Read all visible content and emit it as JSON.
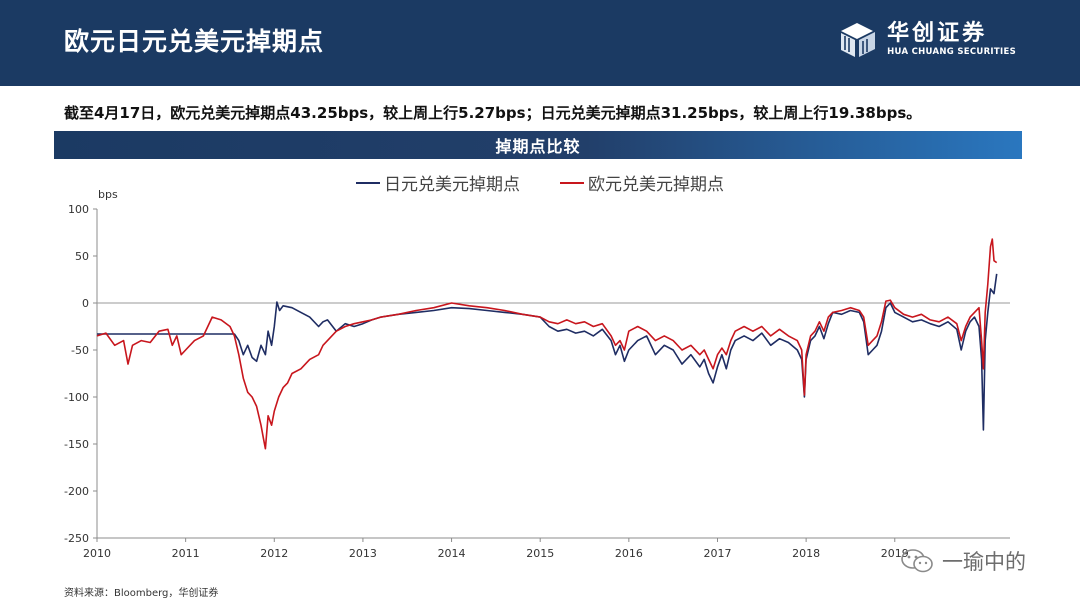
{
  "header": {
    "title": "欧元日元兑美元掉期点",
    "brand_cn": "华创证券",
    "brand_en": "HUA CHUANG SECURITIES"
  },
  "summary": "截至4月17日，欧元兑美元掉期点43.25bps，较上周上行5.27bps；日元兑美元掉期点31.25bps，较上周上行19.38bps。",
  "chart_title": "掉期点比较",
  "source": "资料来源：Bloomberg，华创证券",
  "watermark": "一瑜中的",
  "colors": {
    "header_bg": "#1b3a63",
    "jpy_series": "#1f2d63",
    "eur_series": "#c8161d"
  },
  "chart_data": {
    "type": "line",
    "title": "掉期点比较",
    "unit_label": "bps",
    "xlim": [
      2010,
      2020.3
    ],
    "ylim": [
      -250,
      100
    ],
    "yticks": [
      100,
      50,
      0,
      -50,
      -100,
      -150,
      -200,
      -250
    ],
    "xticks": [
      2010,
      2011,
      2012,
      2013,
      2014,
      2015,
      2016,
      2017,
      2018,
      2019
    ],
    "grid": false,
    "legend_position": "top-center",
    "series": [
      {
        "name": "日元兑美元掉期点",
        "color": "#1f2d63",
        "points": [
          [
            2010.0,
            -33
          ],
          [
            2010.5,
            -33
          ],
          [
            2011.0,
            -33
          ],
          [
            2011.3,
            -33
          ],
          [
            2011.55,
            -33
          ],
          [
            2011.6,
            -40
          ],
          [
            2011.65,
            -55
          ],
          [
            2011.7,
            -45
          ],
          [
            2011.75,
            -58
          ],
          [
            2011.8,
            -62
          ],
          [
            2011.85,
            -45
          ],
          [
            2011.9,
            -55
          ],
          [
            2011.93,
            -30
          ],
          [
            2011.97,
            -45
          ],
          [
            2012.0,
            -25
          ],
          [
            2012.03,
            1
          ],
          [
            2012.06,
            -8
          ],
          [
            2012.1,
            -3
          ],
          [
            2012.2,
            -5
          ],
          [
            2012.3,
            -10
          ],
          [
            2012.4,
            -15
          ],
          [
            2012.5,
            -25
          ],
          [
            2012.55,
            -20
          ],
          [
            2012.6,
            -18
          ],
          [
            2012.7,
            -30
          ],
          [
            2012.8,
            -22
          ],
          [
            2012.9,
            -25
          ],
          [
            2013.0,
            -22
          ],
          [
            2013.1,
            -18
          ],
          [
            2013.2,
            -15
          ],
          [
            2013.4,
            -12
          ],
          [
            2013.6,
            -10
          ],
          [
            2013.8,
            -8
          ],
          [
            2014.0,
            -5
          ],
          [
            2014.2,
            -6
          ],
          [
            2014.4,
            -8
          ],
          [
            2014.6,
            -10
          ],
          [
            2014.8,
            -12
          ],
          [
            2015.0,
            -15
          ],
          [
            2015.1,
            -25
          ],
          [
            2015.2,
            -30
          ],
          [
            2015.3,
            -28
          ],
          [
            2015.4,
            -32
          ],
          [
            2015.5,
            -30
          ],
          [
            2015.6,
            -35
          ],
          [
            2015.7,
            -28
          ],
          [
            2015.8,
            -40
          ],
          [
            2015.85,
            -55
          ],
          [
            2015.9,
            -45
          ],
          [
            2015.95,
            -62
          ],
          [
            2016.0,
            -50
          ],
          [
            2016.1,
            -40
          ],
          [
            2016.2,
            -35
          ],
          [
            2016.3,
            -55
          ],
          [
            2016.4,
            -45
          ],
          [
            2016.5,
            -50
          ],
          [
            2016.6,
            -65
          ],
          [
            2016.7,
            -55
          ],
          [
            2016.8,
            -68
          ],
          [
            2016.85,
            -60
          ],
          [
            2016.9,
            -75
          ],
          [
            2016.95,
            -85
          ],
          [
            2017.0,
            -68
          ],
          [
            2017.05,
            -55
          ],
          [
            2017.1,
            -70
          ],
          [
            2017.15,
            -50
          ],
          [
            2017.2,
            -40
          ],
          [
            2017.3,
            -35
          ],
          [
            2017.4,
            -40
          ],
          [
            2017.5,
            -32
          ],
          [
            2017.6,
            -45
          ],
          [
            2017.7,
            -38
          ],
          [
            2017.8,
            -42
          ],
          [
            2017.9,
            -50
          ],
          [
            2017.95,
            -60
          ],
          [
            2017.98,
            -100
          ],
          [
            2018.0,
            -60
          ],
          [
            2018.05,
            -40
          ],
          [
            2018.1,
            -35
          ],
          [
            2018.15,
            -25
          ],
          [
            2018.2,
            -38
          ],
          [
            2018.25,
            -22
          ],
          [
            2018.3,
            -10
          ],
          [
            2018.4,
            -12
          ],
          [
            2018.5,
            -8
          ],
          [
            2018.6,
            -10
          ],
          [
            2018.65,
            -20
          ],
          [
            2018.7,
            -55
          ],
          [
            2018.75,
            -50
          ],
          [
            2018.8,
            -45
          ],
          [
            2018.85,
            -30
          ],
          [
            2018.9,
            -5
          ],
          [
            2018.95,
            0
          ],
          [
            2019.0,
            -10
          ],
          [
            2019.1,
            -15
          ],
          [
            2019.2,
            -20
          ],
          [
            2019.3,
            -18
          ],
          [
            2019.4,
            -22
          ],
          [
            2019.5,
            -25
          ],
          [
            2019.6,
            -20
          ],
          [
            2019.7,
            -28
          ],
          [
            2019.75,
            -50
          ],
          [
            2019.8,
            -30
          ],
          [
            2019.85,
            -20
          ],
          [
            2019.9,
            -15
          ],
          [
            2019.95,
            -25
          ],
          [
            2019.98,
            -60
          ],
          [
            2020.0,
            -135
          ],
          [
            2020.02,
            -40
          ],
          [
            2020.05,
            -10
          ],
          [
            2020.08,
            15
          ],
          [
            2020.12,
            10
          ],
          [
            2020.15,
            31
          ]
        ]
      },
      {
        "name": "欧元兑美元掉期点",
        "color": "#c8161d",
        "points": [
          [
            2010.0,
            -35
          ],
          [
            2010.1,
            -32
          ],
          [
            2010.2,
            -45
          ],
          [
            2010.3,
            -40
          ],
          [
            2010.35,
            -65
          ],
          [
            2010.4,
            -45
          ],
          [
            2010.5,
            -40
          ],
          [
            2010.6,
            -42
          ],
          [
            2010.7,
            -30
          ],
          [
            2010.8,
            -28
          ],
          [
            2010.85,
            -45
          ],
          [
            2010.9,
            -35
          ],
          [
            2010.95,
            -55
          ],
          [
            2011.0,
            -50
          ],
          [
            2011.1,
            -40
          ],
          [
            2011.2,
            -35
          ],
          [
            2011.3,
            -15
          ],
          [
            2011.4,
            -18
          ],
          [
            2011.5,
            -25
          ],
          [
            2011.55,
            -35
          ],
          [
            2011.6,
            -55
          ],
          [
            2011.65,
            -80
          ],
          [
            2011.7,
            -95
          ],
          [
            2011.75,
            -100
          ],
          [
            2011.8,
            -110
          ],
          [
            2011.85,
            -130
          ],
          [
            2011.88,
            -145
          ],
          [
            2011.9,
            -155
          ],
          [
            2011.93,
            -120
          ],
          [
            2011.97,
            -130
          ],
          [
            2012.0,
            -115
          ],
          [
            2012.05,
            -100
          ],
          [
            2012.1,
            -90
          ],
          [
            2012.15,
            -85
          ],
          [
            2012.2,
            -75
          ],
          [
            2012.3,
            -70
          ],
          [
            2012.4,
            -60
          ],
          [
            2012.5,
            -55
          ],
          [
            2012.55,
            -45
          ],
          [
            2012.6,
            -40
          ],
          [
            2012.7,
            -30
          ],
          [
            2012.8,
            -25
          ],
          [
            2012.9,
            -22
          ],
          [
            2013.0,
            -20
          ],
          [
            2013.1,
            -18
          ],
          [
            2013.2,
            -15
          ],
          [
            2013.4,
            -12
          ],
          [
            2013.6,
            -8
          ],
          [
            2013.8,
            -5
          ],
          [
            2014.0,
            0
          ],
          [
            2014.2,
            -3
          ],
          [
            2014.4,
            -5
          ],
          [
            2014.6,
            -8
          ],
          [
            2014.8,
            -12
          ],
          [
            2015.0,
            -15
          ],
          [
            2015.1,
            -20
          ],
          [
            2015.2,
            -22
          ],
          [
            2015.3,
            -18
          ],
          [
            2015.4,
            -22
          ],
          [
            2015.5,
            -20
          ],
          [
            2015.6,
            -25
          ],
          [
            2015.7,
            -22
          ],
          [
            2015.8,
            -35
          ],
          [
            2015.85,
            -45
          ],
          [
            2015.9,
            -40
          ],
          [
            2015.95,
            -50
          ],
          [
            2016.0,
            -30
          ],
          [
            2016.1,
            -25
          ],
          [
            2016.2,
            -30
          ],
          [
            2016.3,
            -40
          ],
          [
            2016.4,
            -35
          ],
          [
            2016.5,
            -40
          ],
          [
            2016.6,
            -50
          ],
          [
            2016.7,
            -45
          ],
          [
            2016.8,
            -55
          ],
          [
            2016.85,
            -50
          ],
          [
            2016.9,
            -60
          ],
          [
            2016.95,
            -70
          ],
          [
            2017.0,
            -55
          ],
          [
            2017.05,
            -48
          ],
          [
            2017.1,
            -55
          ],
          [
            2017.15,
            -40
          ],
          [
            2017.2,
            -30
          ],
          [
            2017.3,
            -25
          ],
          [
            2017.4,
            -30
          ],
          [
            2017.5,
            -25
          ],
          [
            2017.6,
            -35
          ],
          [
            2017.7,
            -28
          ],
          [
            2017.8,
            -35
          ],
          [
            2017.9,
            -40
          ],
          [
            2017.95,
            -50
          ],
          [
            2017.98,
            -98
          ],
          [
            2018.0,
            -55
          ],
          [
            2018.05,
            -35
          ],
          [
            2018.1,
            -30
          ],
          [
            2018.15,
            -20
          ],
          [
            2018.2,
            -30
          ],
          [
            2018.25,
            -15
          ],
          [
            2018.3,
            -10
          ],
          [
            2018.4,
            -8
          ],
          [
            2018.5,
            -5
          ],
          [
            2018.6,
            -8
          ],
          [
            2018.65,
            -15
          ],
          [
            2018.7,
            -45
          ],
          [
            2018.75,
            -40
          ],
          [
            2018.8,
            -35
          ],
          [
            2018.85,
            -20
          ],
          [
            2018.9,
            2
          ],
          [
            2018.95,
            3
          ],
          [
            2019.0,
            -5
          ],
          [
            2019.1,
            -12
          ],
          [
            2019.2,
            -15
          ],
          [
            2019.3,
            -12
          ],
          [
            2019.4,
            -18
          ],
          [
            2019.5,
            -20
          ],
          [
            2019.6,
            -15
          ],
          [
            2019.7,
            -22
          ],
          [
            2019.75,
            -40
          ],
          [
            2019.8,
            -25
          ],
          [
            2019.85,
            -15
          ],
          [
            2019.9,
            -10
          ],
          [
            2019.95,
            -5
          ],
          [
            2019.98,
            -40
          ],
          [
            2020.0,
            -70
          ],
          [
            2020.02,
            -10
          ],
          [
            2020.05,
            20
          ],
          [
            2020.08,
            60
          ],
          [
            2020.1,
            68
          ],
          [
            2020.12,
            45
          ],
          [
            2020.15,
            43
          ]
        ]
      }
    ]
  }
}
